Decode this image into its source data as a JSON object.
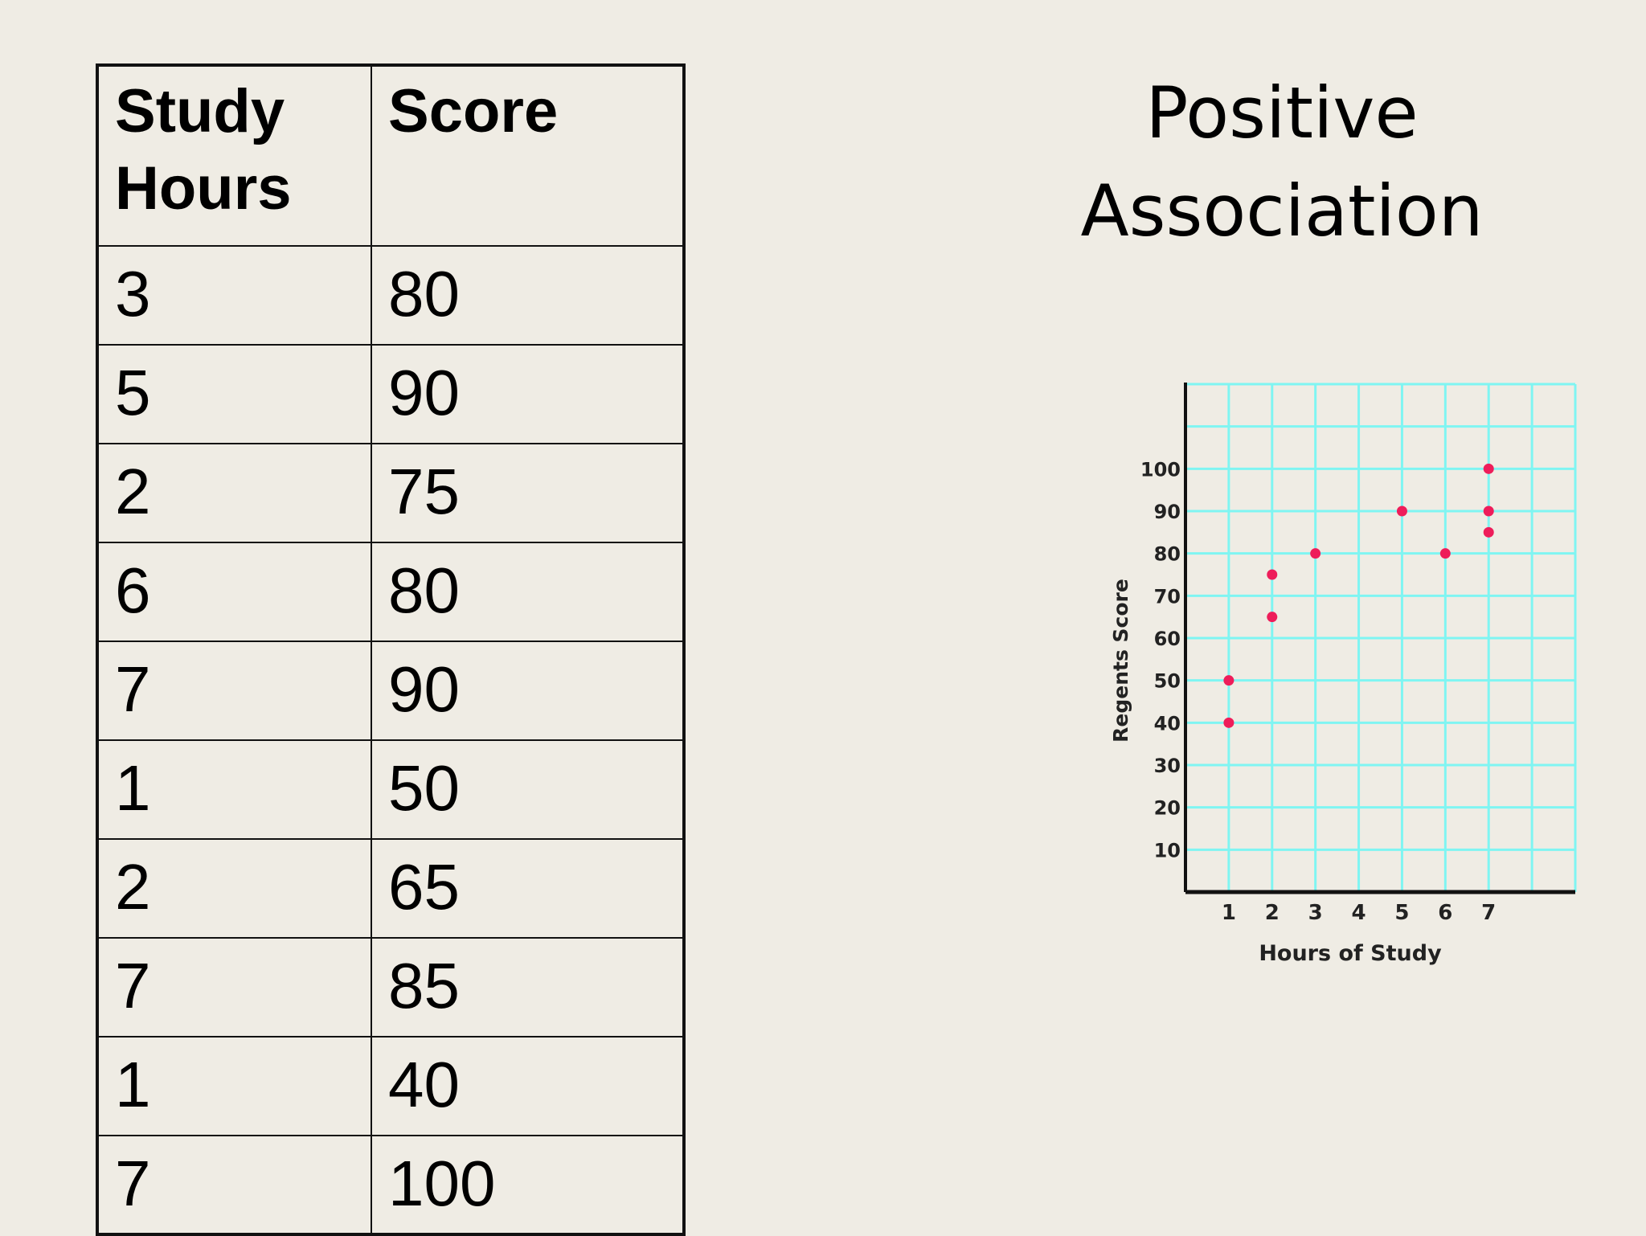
{
  "table": {
    "headers": [
      "Study\nHours",
      "Score"
    ],
    "header_lines": [
      [
        "Study",
        "Hours"
      ],
      [
        "Score"
      ]
    ],
    "rows": [
      [
        "3",
        "80"
      ],
      [
        "5",
        "90"
      ],
      [
        "2",
        "75"
      ],
      [
        "6",
        "80"
      ],
      [
        "7",
        "90"
      ],
      [
        "1",
        "50"
      ],
      [
        "2",
        "65"
      ],
      [
        "7",
        "85"
      ],
      [
        "1",
        "40"
      ],
      [
        "7",
        "100"
      ]
    ]
  },
  "heading": {
    "line1": "Positive",
    "line2": "Association"
  },
  "chart_data": {
    "type": "scatter",
    "title": "",
    "xlabel": "Hours of Study",
    "ylabel": "Regents Score",
    "x_ticks": [
      1,
      2,
      3,
      4,
      5,
      6,
      7
    ],
    "y_ticks": [
      10,
      20,
      30,
      40,
      50,
      60,
      70,
      80,
      90,
      100
    ],
    "xlim": [
      0,
      9
    ],
    "ylim": [
      0,
      120
    ],
    "grid": true,
    "series": [
      {
        "points": [
          {
            "x": 1,
            "y": 50
          },
          {
            "x": 1,
            "y": 40
          },
          {
            "x": 2,
            "y": 75
          },
          {
            "x": 2,
            "y": 65
          },
          {
            "x": 3,
            "y": 80
          },
          {
            "x": 5,
            "y": 90
          },
          {
            "x": 6,
            "y": 80
          },
          {
            "x": 7,
            "y": 100
          },
          {
            "x": 7,
            "y": 90
          },
          {
            "x": 7,
            "y": 85
          }
        ]
      }
    ],
    "colors": {
      "grid": "#7ff5f2",
      "axis": "#111111",
      "point": "#ee1d5a",
      "text": "#222222"
    }
  }
}
